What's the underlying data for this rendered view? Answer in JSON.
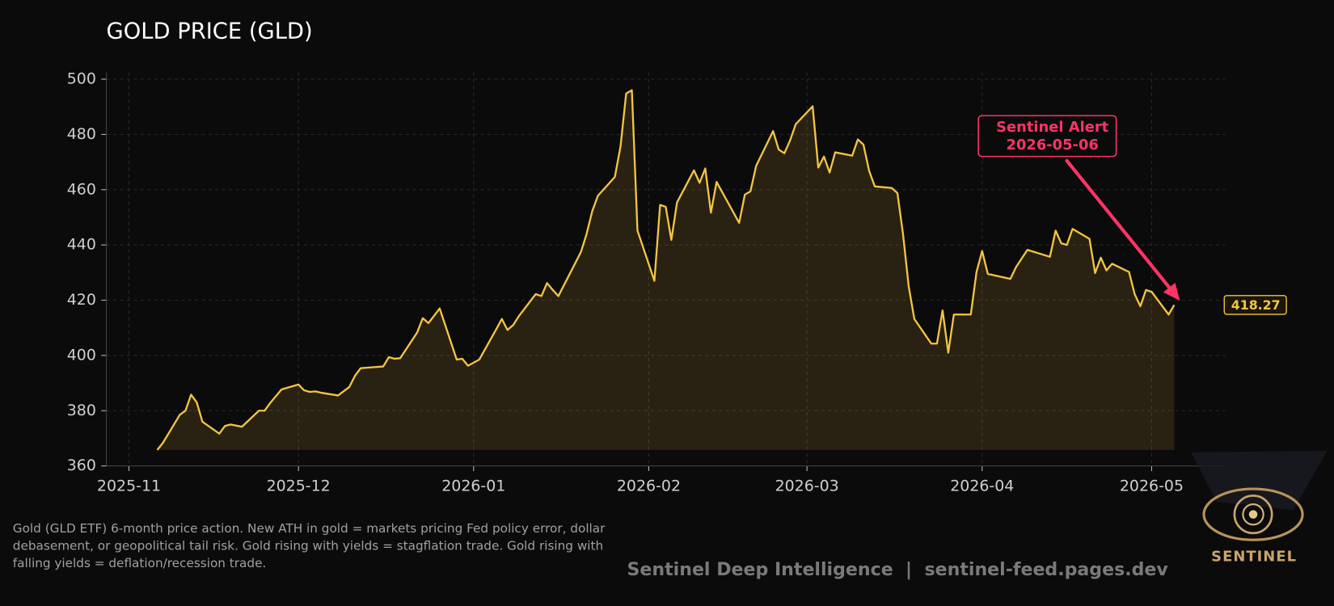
{
  "chart_data": {
    "type": "line",
    "title": "GOLD PRICE (GLD)",
    "color": "#f5c542",
    "x": [
      "2025-11-06",
      "2025-11-07",
      "2025-11-10",
      "2025-11-11",
      "2025-11-12",
      "2025-11-13",
      "2025-11-14",
      "2025-11-17",
      "2025-11-18",
      "2025-11-19",
      "2025-11-21",
      "2025-11-24",
      "2025-11-25",
      "2025-11-26",
      "2025-11-28",
      "2025-12-01",
      "2025-12-02",
      "2025-12-03",
      "2025-12-04",
      "2025-12-05",
      "2025-12-08",
      "2025-12-10",
      "2025-12-11",
      "2025-12-12",
      "2025-12-16",
      "2025-12-17",
      "2025-12-18",
      "2025-12-19",
      "2025-12-22",
      "2025-12-23",
      "2025-12-24",
      "2025-12-26",
      "2025-12-29",
      "2025-12-30",
      "2025-12-31",
      "2026-01-02",
      "2026-01-05",
      "2026-01-06",
      "2026-01-07",
      "2026-01-08",
      "2026-01-09",
      "2026-01-12",
      "2026-01-13",
      "2026-01-14",
      "2026-01-15",
      "2026-01-16",
      "2026-01-20",
      "2026-01-21",
      "2026-01-22",
      "2026-01-23",
      "2026-01-26",
      "2026-01-27",
      "2026-01-28",
      "2026-01-29",
      "2026-01-30",
      "2026-02-02",
      "2026-02-03",
      "2026-02-04",
      "2026-02-05",
      "2026-02-06",
      "2026-02-09",
      "2026-02-10",
      "2026-02-11",
      "2026-02-12",
      "2026-02-13",
      "2026-02-17",
      "2026-02-18",
      "2026-02-19",
      "2026-02-20",
      "2026-02-23",
      "2026-02-24",
      "2026-02-25",
      "2026-02-26",
      "2026-02-27",
      "2026-03-02",
      "2026-03-03",
      "2026-03-04",
      "2026-03-05",
      "2026-03-06",
      "2026-03-09",
      "2026-03-10",
      "2026-03-11",
      "2026-03-12",
      "2026-03-13",
      "2026-03-16",
      "2026-03-17",
      "2026-03-18",
      "2026-03-19",
      "2026-03-20",
      "2026-03-23",
      "2026-03-24",
      "2026-03-25",
      "2026-03-26",
      "2026-03-27",
      "2026-03-30",
      "2026-03-31",
      "2026-04-01",
      "2026-04-02",
      "2026-04-06",
      "2026-04-07",
      "2026-04-09",
      "2026-04-13",
      "2026-04-14",
      "2026-04-15",
      "2026-04-16",
      "2026-04-17",
      "2026-04-20",
      "2026-04-21",
      "2026-04-22",
      "2026-04-23",
      "2026-04-24",
      "2026-04-27",
      "2026-04-28",
      "2026-04-29",
      "2026-04-30",
      "2026-05-01",
      "2026-05-04",
      "2026-05-05"
    ],
    "values": [
      365.8,
      368.3,
      378.5,
      380,
      385.8,
      383,
      376,
      371.7,
      374.5,
      375,
      374.2,
      380,
      380,
      382.8,
      387.7,
      389.5,
      387.4,
      386.8,
      387,
      386.5,
      385.5,
      388.6,
      392.6,
      395.4,
      396,
      399.4,
      398.8,
      399,
      408.3,
      413.5,
      411.7,
      417,
      398.5,
      398.8,
      396.3,
      398.5,
      409.5,
      413.2,
      409.2,
      411,
      414.2,
      422.2,
      421.5,
      426.2,
      423.7,
      421.5,
      437.5,
      444,
      452.3,
      457.8,
      464.6,
      475.7,
      494.8,
      496,
      445.2,
      427,
      454.5,
      453.8,
      441.8,
      455.4,
      467,
      462.5,
      467.7,
      451.7,
      462.8,
      448,
      458.2,
      459.4,
      468.6,
      481.2,
      474.5,
      473.2,
      477.8,
      483.7,
      490.2,
      468,
      472,
      466.2,
      473.5,
      472.3,
      478.2,
      476.3,
      466.8,
      461.2,
      460.6,
      458.8,
      444,
      425,
      413.2,
      404.3,
      404.3,
      416.3,
      401,
      414.8,
      414.8,
      430.2,
      437.8,
      429.5,
      427.7,
      432,
      438.2,
      435.7,
      445.2,
      440.6,
      440,
      445.8,
      442.2,
      429.8,
      435.4,
      430.8,
      433.2,
      430.2,
      422.2,
      417.8,
      423.7,
      423,
      414.8,
      418.27
    ],
    "xlim": [
      "2025-10-28",
      "2026-05-14"
    ],
    "xticks": [
      "2025-11",
      "2025-12",
      "2026-01",
      "2026-02",
      "2026-03",
      "2026-04",
      "2026-05"
    ],
    "ylim": [
      360,
      502.5
    ],
    "yticks": [
      360,
      380,
      400,
      420,
      440,
      460,
      480,
      500
    ],
    "grid": true,
    "annotation": {
      "lines": [
        "Sentinel Alert",
        "2026-05-06"
      ],
      "color": "#ff3366"
    },
    "caption": [
      "Gold (GLD ETF) 6-month price action. New ATH in gold = markets pricing Fed policy error, dollar",
      "debasement, or geopolitical tail risk. Gold rising with yields = stagflation trade. Gold rising with",
      "falling yields = deflation/recession trade."
    ],
    "footer": "Sentinel Deep Intelligence  |  sentinel-feed.pages.dev",
    "logo": "SENTINEL"
  }
}
